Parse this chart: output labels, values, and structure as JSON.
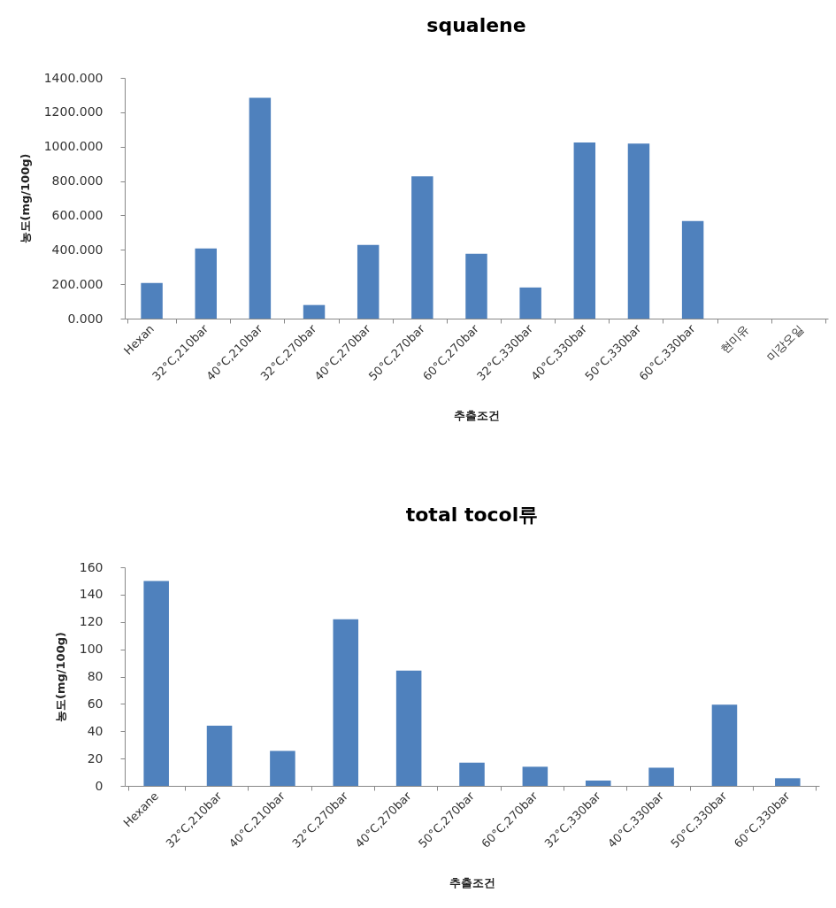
{
  "chart_data": [
    {
      "type": "bar",
      "title": "squalene",
      "xlabel": "추출조건",
      "ylabel": "농도(mg/100g)",
      "categories": [
        "Hexan",
        "32°C,210bar",
        "40°C,210bar",
        "32°C,270bar",
        "40°C,270bar",
        "50°C,270bar",
        "60°C,270bar",
        "32°C,330bar",
        "40°C,330bar",
        "50°C,330bar",
        "60°C,330bar",
        "현미유",
        "미강오일"
      ],
      "values": [
        207,
        408,
        1284,
        79,
        429,
        827,
        377,
        181,
        1024,
        1018,
        568,
        null,
        null
      ],
      "color": "#4f81bd",
      "ylim": [
        0,
        1400
      ],
      "yticks": [
        {
          "value": 0,
          "label": "0.000"
        },
        {
          "value": 200,
          "label": "200.000"
        },
        {
          "value": 400,
          "label": "400.000"
        },
        {
          "value": 600,
          "label": "600.000"
        },
        {
          "value": 800,
          "label": "800.000"
        },
        {
          "value": 1000,
          "label": "1000.000"
        },
        {
          "value": 1200,
          "label": "1200.000"
        },
        {
          "value": 1400,
          "label": "1400.000"
        }
      ]
    },
    {
      "type": "bar",
      "title": "total tocol류",
      "xlabel": "추출조건",
      "ylabel": "농도(mg/100g)",
      "categories": [
        "Hexane",
        "32°C,210bar",
        "40°C,210bar",
        "32°C,270bar",
        "40°C,270bar",
        "50°C,270bar",
        "60°C,270bar",
        "32°C,330bar",
        "40°C,330bar",
        "50°C,330bar",
        "60°C,330bar"
      ],
      "values": [
        150,
        44,
        25.6,
        122,
        84.3,
        17,
        14,
        3.9,
        13.3,
        59.5,
        5.6
      ],
      "color": "#4f81bd",
      "ylim": [
        0,
        160
      ],
      "yticks": [
        0,
        20,
        40,
        60,
        80,
        100,
        120,
        140,
        160
      ]
    }
  ]
}
